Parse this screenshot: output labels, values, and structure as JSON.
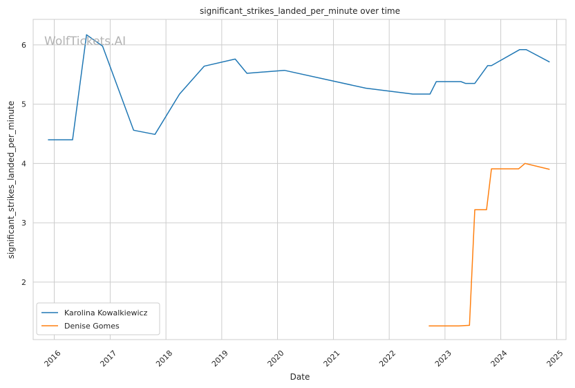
{
  "watermark": "WolfTickets.AI",
  "chart_data": {
    "type": "line",
    "title": "significant_strikes_landed_per_minute over time",
    "xlabel": "Date",
    "ylabel": "significant_strikes_landed_per_minute",
    "x_ticks": [
      "2016",
      "2017",
      "2018",
      "2019",
      "2020",
      "2021",
      "2022",
      "2023",
      "2024",
      "2025"
    ],
    "y_ticks": [
      2,
      3,
      4,
      5,
      6
    ],
    "xlim": [
      "2015-08-16",
      "2025-03-03"
    ],
    "ylim": [
      1.03,
      6.43
    ],
    "grid": true,
    "legend_position": "lower-left",
    "series": [
      {
        "name": "Karolina Kowalkiewicz",
        "color": "#1f77b4",
        "points": [
          [
            "2015-11-21",
            4.4
          ],
          [
            "2016-04-30",
            4.4
          ],
          [
            "2016-07-30",
            6.17
          ],
          [
            "2016-11-12",
            5.98
          ],
          [
            "2017-06-03",
            4.56
          ],
          [
            "2017-10-21",
            4.49
          ],
          [
            "2018-03-31",
            5.17
          ],
          [
            "2018-09-08",
            5.64
          ],
          [
            "2019-03-30",
            5.76
          ],
          [
            "2019-06-15",
            5.52
          ],
          [
            "2020-02-15",
            5.57
          ],
          [
            "2021-08-01",
            5.27
          ],
          [
            "2022-06-04",
            5.17
          ],
          [
            "2022-09-25",
            5.17
          ],
          [
            "2022-11-05",
            5.38
          ],
          [
            "2023-04-15",
            5.38
          ],
          [
            "2023-05-15",
            5.35
          ],
          [
            "2023-07-15",
            5.35
          ],
          [
            "2023-10-07",
            5.65
          ],
          [
            "2023-11-01",
            5.65
          ],
          [
            "2024-05-04",
            5.92
          ],
          [
            "2024-06-15",
            5.92
          ],
          [
            "2024-11-16",
            5.71
          ]
        ]
      },
      {
        "name": "Denise Gomes",
        "color": "#ff7f0e",
        "points": [
          [
            "2022-09-17",
            1.26
          ],
          [
            "2023-04-01",
            1.26
          ],
          [
            "2023-06-10",
            1.27
          ],
          [
            "2023-07-15",
            3.22
          ],
          [
            "2023-09-30",
            3.22
          ],
          [
            "2023-11-01",
            3.91
          ],
          [
            "2024-04-27",
            3.91
          ],
          [
            "2024-06-08",
            4.0
          ],
          [
            "2024-11-16",
            3.9
          ]
        ]
      }
    ]
  }
}
